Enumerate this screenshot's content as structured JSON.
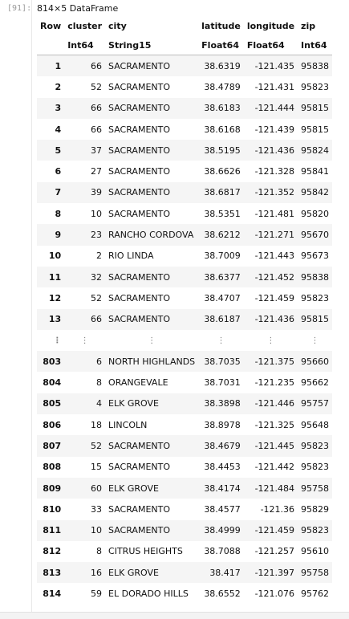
{
  "cell": {
    "prompt": "[91]:",
    "title": "814×5 DataFrame"
  },
  "table": {
    "headers": [
      "Row",
      "cluster",
      "city",
      "latitude",
      "longitude",
      "zip"
    ],
    "types": [
      "",
      "Int64",
      "String15",
      "Float64",
      "Float64",
      "Int64"
    ],
    "ellipsis": "⋮",
    "rows_top": [
      [
        "1",
        "66",
        "SACRAMENTO",
        "38.6319",
        "-121.435",
        "95838"
      ],
      [
        "2",
        "52",
        "SACRAMENTO",
        "38.4789",
        "-121.431",
        "95823"
      ],
      [
        "3",
        "66",
        "SACRAMENTO",
        "38.6183",
        "-121.444",
        "95815"
      ],
      [
        "4",
        "66",
        "SACRAMENTO",
        "38.6168",
        "-121.439",
        "95815"
      ],
      [
        "5",
        "37",
        "SACRAMENTO",
        "38.5195",
        "-121.436",
        "95824"
      ],
      [
        "6",
        "27",
        "SACRAMENTO",
        "38.6626",
        "-121.328",
        "95841"
      ],
      [
        "7",
        "39",
        "SACRAMENTO",
        "38.6817",
        "-121.352",
        "95842"
      ],
      [
        "8",
        "10",
        "SACRAMENTO",
        "38.5351",
        "-121.481",
        "95820"
      ],
      [
        "9",
        "23",
        "RANCHO CORDOVA",
        "38.6212",
        "-121.271",
        "95670"
      ],
      [
        "10",
        "2",
        "RIO LINDA",
        "38.7009",
        "-121.443",
        "95673"
      ],
      [
        "11",
        "32",
        "SACRAMENTO",
        "38.6377",
        "-121.452",
        "95838"
      ],
      [
        "12",
        "52",
        "SACRAMENTO",
        "38.4707",
        "-121.459",
        "95823"
      ],
      [
        "13",
        "66",
        "SACRAMENTO",
        "38.6187",
        "-121.436",
        "95815"
      ]
    ],
    "rows_bottom": [
      [
        "803",
        "6",
        "NORTH HIGHLANDS",
        "38.7035",
        "-121.375",
        "95660"
      ],
      [
        "804",
        "8",
        "ORANGEVALE",
        "38.7031",
        "-121.235",
        "95662"
      ],
      [
        "805",
        "4",
        "ELK GROVE",
        "38.3898",
        "-121.446",
        "95757"
      ],
      [
        "806",
        "18",
        "LINCOLN",
        "38.8978",
        "-121.325",
        "95648"
      ],
      [
        "807",
        "52",
        "SACRAMENTO",
        "38.4679",
        "-121.445",
        "95823"
      ],
      [
        "808",
        "15",
        "SACRAMENTO",
        "38.4453",
        "-121.442",
        "95823"
      ],
      [
        "809",
        "60",
        "ELK GROVE",
        "38.4174",
        "-121.484",
        "95758"
      ],
      [
        "810",
        "33",
        "SACRAMENTO",
        "38.4577",
        "-121.36",
        "95829"
      ],
      [
        "811",
        "10",
        "SACRAMENTO",
        "38.4999",
        "-121.459",
        "95823"
      ],
      [
        "812",
        "8",
        "CITRUS HEIGHTS",
        "38.7088",
        "-121.257",
        "95610"
      ],
      [
        "813",
        "16",
        "ELK GROVE",
        "38.417",
        "-121.397",
        "95758"
      ],
      [
        "814",
        "59",
        "EL DORADO HILLS",
        "38.6552",
        "-121.076",
        "95762"
      ]
    ]
  }
}
